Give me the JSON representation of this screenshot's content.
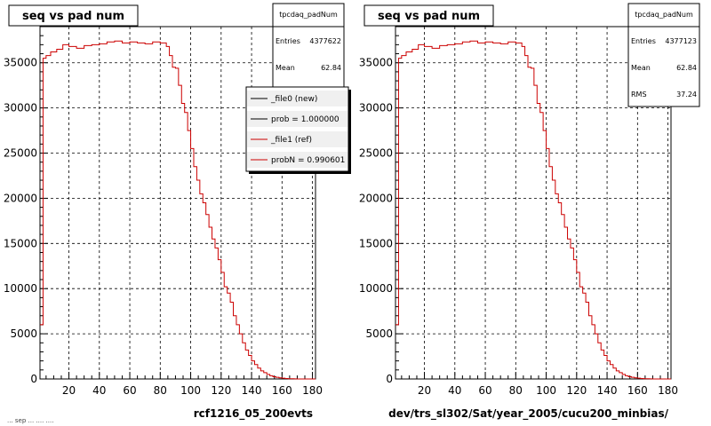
{
  "footer_text": "... sep ... .... ....",
  "chart_data": [
    {
      "type": "line",
      "title": "seq vs pad num",
      "xlabel": "rcf1216_05_200evts",
      "ylabel": "",
      "xlim": [
        1,
        182
      ],
      "ylim": [
        0,
        39000
      ],
      "xticks": [
        "20",
        "40",
        "60",
        "80",
        "100",
        "120",
        "140",
        "160",
        "180"
      ],
      "yticks": [
        "0",
        "5000",
        "10000",
        "15000",
        "20000",
        "25000",
        "30000",
        "35000"
      ],
      "grid": true,
      "stats": {
        "name": "tpcdaq_padNum",
        "rows": [
          [
            "Entries",
            "4377622"
          ],
          [
            "Mean",
            "62.84"
          ]
        ]
      },
      "legend": {
        "placement": "top-right",
        "entries": [
          "_file0 (new)",
          "prob = 1.000000",
          "_file1 (ref)",
          "probN = 0.990601"
        ]
      },
      "series": [
        {
          "color": "#cc0000",
          "x": [
            1,
            3,
            5,
            8,
            12,
            16,
            20,
            25,
            30,
            35,
            40,
            45,
            50,
            55,
            60,
            65,
            70,
            75,
            80,
            84,
            86,
            88,
            90,
            92,
            94,
            96,
            98,
            100,
            102,
            104,
            106,
            108,
            110,
            112,
            114,
            116,
            118,
            120,
            122,
            124,
            126,
            128,
            130,
            132,
            134,
            136,
            138,
            140,
            142,
            144,
            146,
            148,
            150,
            152,
            154,
            156,
            158,
            160,
            162,
            164,
            166,
            168,
            170,
            172,
            174,
            176,
            178
          ],
          "y": [
            6000,
            35500,
            35800,
            36200,
            36500,
            37000,
            36800,
            36600,
            36900,
            37000,
            37100,
            37300,
            37400,
            37200,
            37300,
            37200,
            37100,
            37300,
            37200,
            36800,
            35800,
            34500,
            34400,
            32500,
            30500,
            29500,
            27500,
            25500,
            23500,
            22000,
            20500,
            19500,
            18200,
            16800,
            15500,
            14500,
            13200,
            11800,
            10200,
            9500,
            8500,
            7000,
            6000,
            5000,
            4000,
            3200,
            2600,
            2000,
            1600,
            1200,
            900,
            700,
            500,
            350,
            250,
            180,
            120,
            80,
            50,
            30,
            20,
            10,
            5,
            2,
            0,
            0,
            0
          ]
        }
      ]
    },
    {
      "type": "line",
      "title": "seq vs pad num",
      "xlabel": "dev/trs_sl302/Sat/year_2005/cucu200_minbias/",
      "ylabel": "",
      "xlim": [
        1,
        182
      ],
      "ylim": [
        0,
        39000
      ],
      "xticks": [
        "20",
        "40",
        "60",
        "80",
        "100",
        "120",
        "140",
        "160",
        "180"
      ],
      "yticks": [
        "0",
        "5000",
        "10000",
        "15000",
        "20000",
        "25000",
        "30000",
        "35000"
      ],
      "grid": true,
      "stats": {
        "name": "tpcdaq_padNum",
        "rows": [
          [
            "Entries",
            "4377123"
          ],
          [
            "Mean",
            "62.84"
          ],
          [
            "RMS",
            "37.24"
          ]
        ]
      },
      "series": [
        {
          "color": "#cc0000",
          "x": [
            1,
            3,
            5,
            8,
            12,
            16,
            20,
            25,
            30,
            35,
            40,
            45,
            50,
            55,
            60,
            65,
            70,
            75,
            80,
            84,
            86,
            88,
            90,
            92,
            94,
            96,
            98,
            100,
            102,
            104,
            106,
            108,
            110,
            112,
            114,
            116,
            118,
            120,
            122,
            124,
            126,
            128,
            130,
            132,
            134,
            136,
            138,
            140,
            142,
            144,
            146,
            148,
            150,
            152,
            154,
            156,
            158,
            160,
            162,
            164,
            166,
            168,
            170,
            172,
            174,
            176,
            178
          ],
          "y": [
            6000,
            35500,
            35800,
            36200,
            36500,
            37000,
            36800,
            36600,
            36900,
            37000,
            37100,
            37300,
            37400,
            37200,
            37300,
            37200,
            37100,
            37300,
            37200,
            36800,
            35800,
            34500,
            34400,
            32500,
            30500,
            29500,
            27500,
            25500,
            23500,
            22000,
            20500,
            19500,
            18200,
            16800,
            15500,
            14500,
            13200,
            11800,
            10200,
            9500,
            8500,
            7000,
            6000,
            5000,
            4000,
            3200,
            2600,
            2000,
            1600,
            1200,
            900,
            700,
            500,
            350,
            250,
            180,
            120,
            80,
            50,
            30,
            20,
            10,
            5,
            2,
            0,
            0,
            0
          ]
        }
      ]
    }
  ]
}
